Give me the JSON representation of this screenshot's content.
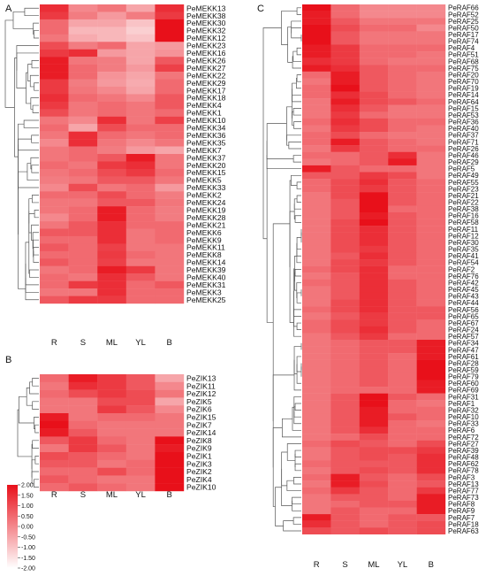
{
  "chart_data": [
    {
      "type": "heatmap",
      "panel": "A",
      "columns": [
        "R",
        "S",
        "ML",
        "YL",
        "B"
      ],
      "rows": [
        "PeMEKK13",
        "PeMEKK38",
        "PeMEKK30",
        "PeMEKK32",
        "PeMEKK12",
        "PeMEKK23",
        "PeMEKK16",
        "PeMEKK26",
        "PeMEKK27",
        "PeMEKK22",
        "PeMEKK29",
        "PeMEKK17",
        "PeMEKK18",
        "PeMEKK4",
        "PeMEKK1",
        "PeMEKK10",
        "PeMEKK34",
        "PeMEKK36",
        "PeMEKK35",
        "PeMEKK7",
        "PeMEKK37",
        "PeMEKK20",
        "PeMEKK15",
        "PeMEKK5",
        "PeMEKK33",
        "PeMEKK2",
        "PeMEKK24",
        "PeMEKK19",
        "PeMEKK28",
        "PeMEKK21",
        "PeMEKK6",
        "PeMEKK9",
        "PeMEKK11",
        "PeMEKK8",
        "PeMEKK14",
        "PeMEKK39",
        "PeMEKK40",
        "PeMEKK31",
        "PeMEKK3",
        "PeMEKK25"
      ],
      "values": [
        [
          1.5,
          0.0,
          0.3,
          -0.5,
          1.5
        ],
        [
          1.3,
          0.2,
          -0.3,
          0.2,
          1.3
        ],
        [
          0.5,
          -0.5,
          -0.5,
          -1.0,
          2.0
        ],
        [
          0.5,
          -0.8,
          -0.8,
          -1.2,
          2.0
        ],
        [
          0.3,
          -0.6,
          -0.8,
          -1.0,
          2.0
        ],
        [
          1.0,
          0.2,
          0.5,
          -0.5,
          -0.3
        ],
        [
          1.3,
          1.5,
          -0.3,
          -0.5,
          -0.2
        ],
        [
          1.8,
          0.3,
          0.2,
          -0.5,
          0.8
        ],
        [
          1.8,
          0.5,
          0.2,
          -0.3,
          1.2
        ],
        [
          1.8,
          0.5,
          -0.2,
          -0.5,
          0.3
        ],
        [
          1.3,
          0.2,
          -0.3,
          -0.6,
          0.5
        ],
        [
          1.3,
          0.3,
          0.0,
          -0.5,
          0.5
        ],
        [
          1.5,
          0.5,
          0.3,
          0.0,
          0.8
        ],
        [
          1.3,
          0.3,
          0.5,
          0.3,
          0.8
        ],
        [
          1.0,
          0.3,
          0.5,
          0.3,
          0.5
        ],
        [
          0.3,
          0.0,
          1.5,
          0.3,
          1.2
        ],
        [
          0.5,
          -0.5,
          1.0,
          0.5,
          0.5
        ],
        [
          0.3,
          1.5,
          0.5,
          0.3,
          0.5
        ],
        [
          0.0,
          1.5,
          0.3,
          0.0,
          0.3
        ],
        [
          0.3,
          0.5,
          0.2,
          -0.3,
          -0.5
        ],
        [
          0.3,
          0.5,
          0.8,
          1.8,
          0.3
        ],
        [
          0.5,
          0.3,
          1.3,
          1.5,
          0.3
        ],
        [
          0.3,
          0.5,
          1.0,
          1.3,
          0.5
        ],
        [
          0.2,
          0.3,
          0.8,
          0.8,
          0.3
        ],
        [
          0.0,
          1.0,
          0.3,
          0.5,
          -0.3
        ],
        [
          0.5,
          0.5,
          1.0,
          0.5,
          0.2
        ],
        [
          0.3,
          0.3,
          0.8,
          0.8,
          0.3
        ],
        [
          0.3,
          0.5,
          1.8,
          0.5,
          0.2
        ],
        [
          0.0,
          0.5,
          1.8,
          0.5,
          0.2
        ],
        [
          0.3,
          0.8,
          1.5,
          0.5,
          0.5
        ],
        [
          0.8,
          0.8,
          1.5,
          0.3,
          0.5
        ],
        [
          0.5,
          0.5,
          1.5,
          0.3,
          0.5
        ],
        [
          0.8,
          0.5,
          1.2,
          0.3,
          0.3
        ],
        [
          0.5,
          0.5,
          1.3,
          0.5,
          0.3
        ],
        [
          0.8,
          0.5,
          1.2,
          0.3,
          0.3
        ],
        [
          0.3,
          0.5,
          1.8,
          1.3,
          0.3
        ],
        [
          0.5,
          0.3,
          1.5,
          0.8,
          0.3
        ],
        [
          0.5,
          1.3,
          1.5,
          0.5,
          0.8
        ],
        [
          0.3,
          0.3,
          1.5,
          0.5,
          0.5
        ],
        [
          0.8,
          1.3,
          1.3,
          0.5,
          0.5
        ]
      ]
    },
    {
      "type": "heatmap",
      "panel": "B",
      "columns": [
        "R",
        "S",
        "ML",
        "YL",
        "B"
      ],
      "rows": [
        "PeZIK13",
        "PeZIK11",
        "PeZIK12",
        "PeZIK5",
        "PeZIK6",
        "PeZIK15",
        "PeZIK7",
        "PeZIK14",
        "PeZIK8",
        "PeZIK9",
        "PeZIK1",
        "PeZIK3",
        "PeZIK2",
        "PeZIK4",
        "PeZIK10"
      ],
      "values": [
        [
          0.5,
          1.8,
          1.3,
          0.8,
          -0.5
        ],
        [
          0.3,
          1.5,
          1.3,
          0.8,
          0.0
        ],
        [
          0.5,
          1.0,
          1.3,
          1.0,
          0.3
        ],
        [
          0.3,
          0.3,
          1.0,
          1.0,
          -0.5
        ],
        [
          0.3,
          0.3,
          1.3,
          0.8,
          0.0
        ],
        [
          1.8,
          0.3,
          0.5,
          0.5,
          0.3
        ],
        [
          2.0,
          0.5,
          0.3,
          0.3,
          0.3
        ],
        [
          1.8,
          0.8,
          0.3,
          0.3,
          0.3
        ],
        [
          0.8,
          1.3,
          0.5,
          0.3,
          2.0
        ],
        [
          0.3,
          1.3,
          0.8,
          0.3,
          1.8
        ],
        [
          1.0,
          0.8,
          0.5,
          0.3,
          2.0
        ],
        [
          0.8,
          0.8,
          0.3,
          0.5,
          2.0
        ],
        [
          0.5,
          0.5,
          1.0,
          0.5,
          2.0
        ],
        [
          0.8,
          0.5,
          0.3,
          0.3,
          2.0
        ],
        [
          0.5,
          0.8,
          0.5,
          0.3,
          2.0
        ]
      ]
    },
    {
      "type": "heatmap",
      "panel": "C",
      "columns": [
        "R",
        "S",
        "ML",
        "YL",
        "B"
      ],
      "rows": [
        "PeRAF66",
        "PeRAF52",
        "PeRAF25",
        "PeRAF50",
        "PeRAF17",
        "PeRAF74",
        "PeRAF4",
        "PeRAF51",
        "PeRAF68",
        "PeRAF75",
        "PeRAF20",
        "PeRAF70",
        "PeRAF19",
        "PeRAF14",
        "PeRAF64",
        "PeRAF15",
        "PeRAF53",
        "PeRAF36",
        "PeRAF40",
        "PeRAF37",
        "PeRAF71",
        "PeRAF26",
        "PeRAF46",
        "PeRAF29",
        "PeRAF5",
        "PeRAF49",
        "PeRAF55",
        "PeRAF23",
        "PeRAF21",
        "PeRAF22",
        "PeRAF38",
        "PeRAF16",
        "PeRAF58",
        "PeRAF11",
        "PeRAF12",
        "PeRAF30",
        "PeRAF35",
        "PeRAF41",
        "PeRAF54",
        "PeRAF2",
        "PeRAF76",
        "PeRAF42",
        "PeRAF45",
        "PeRAF43",
        "PeRAF44",
        "PeRAF56",
        "PeRAF65",
        "PeRAF67",
        "PeRAF24",
        "PeRAF57",
        "PeRAF34",
        "PeRAF47",
        "PeRAF61",
        "PeRAF28",
        "PeRAF59",
        "PeRAF79",
        "PeRAF60",
        "PeRAF69",
        "PeRAF31",
        "PeRAF1",
        "PeRAF32",
        "PeRAF10",
        "PeRAF33",
        "PeRAF6",
        "PeRAF72",
        "PeRAF27",
        "PeRAF39",
        "PeRAF48",
        "PeRAF62",
        "PeRAF78",
        "PeRAF3",
        "PeRAF13",
        "PeRAF77",
        "PeRAF73",
        "PeRAF8",
        "PeRAF9",
        "PeRAF7",
        "PeRAF18",
        "PeRAF63"
      ],
      "values": [
        [
          2.0,
          0.5,
          0.0,
          0.0,
          0.0
        ],
        [
          1.8,
          0.5,
          0.0,
          0.0,
          0.0
        ],
        [
          1.8,
          0.8,
          0.3,
          0.3,
          0.3
        ],
        [
          2.0,
          1.0,
          0.5,
          0.5,
          0.0
        ],
        [
          2.0,
          0.8,
          0.3,
          0.3,
          0.3
        ],
        [
          2.0,
          0.8,
          0.3,
          0.3,
          0.3
        ],
        [
          1.8,
          1.3,
          0.5,
          0.5,
          0.5
        ],
        [
          1.8,
          1.3,
          0.5,
          0.5,
          0.3
        ],
        [
          1.5,
          1.3,
          0.5,
          0.3,
          0.3
        ],
        [
          1.8,
          1.5,
          0.8,
          0.5,
          0.5
        ],
        [
          0.5,
          1.8,
          0.8,
          0.5,
          0.3
        ],
        [
          0.3,
          1.8,
          0.8,
          0.5,
          0.3
        ],
        [
          0.5,
          2.0,
          0.8,
          0.5,
          0.3
        ],
        [
          0.5,
          1.5,
          1.0,
          0.5,
          0.3
        ],
        [
          0.3,
          1.8,
          1.0,
          0.8,
          0.5
        ],
        [
          0.3,
          1.5,
          0.8,
          0.3,
          0.3
        ],
        [
          0.3,
          1.3,
          0.5,
          0.3,
          0.3
        ],
        [
          0.5,
          1.5,
          1.0,
          0.5,
          0.5
        ],
        [
          0.3,
          1.3,
          1.0,
          0.5,
          0.3
        ],
        [
          0.5,
          1.0,
          0.5,
          0.3,
          0.3
        ],
        [
          0.5,
          1.8,
          0.8,
          0.5,
          0.3
        ],
        [
          0.3,
          1.3,
          0.8,
          0.5,
          0.5
        ],
        [
          0.5,
          0.5,
          0.8,
          1.5,
          0.3
        ],
        [
          0.3,
          0.5,
          0.8,
          1.8,
          0.3
        ],
        [
          1.8,
          0.8,
          0.5,
          0.5,
          0.3
        ],
        [
          0.8,
          0.8,
          1.3,
          1.0,
          0.3
        ],
        [
          0.5,
          1.0,
          1.5,
          0.8,
          0.5
        ],
        [
          0.5,
          1.0,
          1.3,
          0.8,
          0.5
        ],
        [
          0.3,
          1.0,
          2.0,
          0.8,
          0.5
        ],
        [
          0.3,
          0.8,
          2.0,
          0.8,
          0.5
        ],
        [
          0.3,
          0.8,
          2.0,
          0.5,
          0.5
        ],
        [
          0.3,
          0.8,
          1.8,
          0.8,
          0.5
        ],
        [
          0.3,
          1.0,
          2.0,
          0.8,
          0.5
        ],
        [
          0.3,
          1.0,
          1.5,
          0.8,
          0.5
        ],
        [
          0.3,
          1.0,
          1.5,
          0.8,
          0.5
        ],
        [
          0.3,
          1.0,
          1.5,
          0.8,
          0.5
        ],
        [
          0.3,
          1.0,
          1.3,
          0.8,
          0.5
        ],
        [
          0.3,
          0.8,
          1.5,
          0.8,
          0.5
        ],
        [
          0.3,
          1.0,
          1.3,
          0.8,
          0.5
        ],
        [
          0.5,
          1.0,
          1.5,
          0.5,
          0.5
        ],
        [
          0.3,
          0.8,
          1.5,
          0.5,
          0.5
        ],
        [
          0.5,
          0.8,
          1.5,
          0.8,
          0.5
        ],
        [
          0.3,
          0.8,
          1.5,
          0.8,
          0.5
        ],
        [
          0.3,
          0.8,
          1.5,
          0.8,
          0.5
        ],
        [
          0.3,
          1.0,
          1.5,
          0.8,
          0.5
        ],
        [
          0.5,
          1.0,
          1.5,
          0.8,
          0.8
        ],
        [
          0.3,
          0.8,
          1.3,
          0.8,
          0.8
        ],
        [
          0.5,
          1.0,
          1.3,
          0.8,
          0.5
        ],
        [
          0.5,
          1.0,
          1.5,
          0.8,
          0.5
        ],
        [
          0.3,
          0.8,
          1.3,
          0.5,
          0.5
        ],
        [
          0.3,
          0.5,
          0.8,
          0.8,
          1.8
        ],
        [
          0.3,
          0.5,
          0.8,
          0.8,
          1.8
        ],
        [
          0.3,
          0.5,
          0.8,
          0.5,
          1.8
        ],
        [
          0.3,
          0.5,
          0.8,
          0.5,
          2.0
        ],
        [
          0.3,
          0.5,
          0.8,
          0.5,
          2.0
        ],
        [
          0.3,
          0.5,
          0.8,
          0.5,
          2.0
        ],
        [
          0.3,
          0.5,
          0.8,
          0.5,
          1.8
        ],
        [
          0.3,
          0.5,
          0.5,
          0.5,
          1.8
        ],
        [
          0.3,
          0.8,
          2.0,
          0.8,
          0.5
        ],
        [
          0.3,
          0.8,
          2.0,
          0.5,
          0.3
        ],
        [
          0.3,
          0.8,
          1.8,
          0.5,
          0.5
        ],
        [
          0.3,
          0.8,
          1.8,
          0.8,
          0.5
        ],
        [
          0.3,
          0.8,
          1.8,
          0.5,
          0.3
        ],
        [
          0.3,
          0.8,
          1.5,
          0.5,
          0.5
        ],
        [
          0.3,
          0.5,
          1.0,
          0.5,
          0.5
        ],
        [
          0.5,
          1.0,
          0.8,
          0.5,
          1.0
        ],
        [
          0.3,
          0.8,
          1.0,
          1.0,
          1.3
        ],
        [
          0.3,
          0.8,
          1.0,
          0.8,
          1.5
        ],
        [
          0.5,
          0.8,
          0.8,
          0.8,
          1.5
        ],
        [
          0.3,
          0.8,
          1.0,
          0.8,
          1.5
        ],
        [
          0.5,
          1.8,
          0.8,
          0.5,
          1.0
        ],
        [
          0.3,
          1.8,
          1.0,
          0.5,
          0.8
        ],
        [
          0.5,
          1.3,
          0.8,
          0.5,
          1.3
        ],
        [
          0.3,
          0.8,
          0.8,
          0.5,
          1.8
        ],
        [
          0.3,
          0.5,
          0.8,
          0.8,
          1.8
        ],
        [
          0.3,
          0.8,
          0.5,
          0.5,
          1.8
        ],
        [
          1.8,
          0.8,
          0.5,
          0.8,
          0.8
        ],
        [
          1.5,
          0.8,
          0.5,
          0.8,
          1.0
        ],
        [
          1.0,
          0.8,
          1.0,
          0.8,
          1.0
        ]
      ]
    }
  ],
  "panels": {
    "A": {
      "letter": "A"
    },
    "B": {
      "letter": "B"
    },
    "C": {
      "letter": "C"
    }
  },
  "legend": {
    "min": -2.0,
    "max": 2.0,
    "ticks": [
      "2.00",
      "1.50",
      "1.00",
      "0.50",
      "0.00",
      "-0.50",
      "-1.00",
      "-1.50",
      "-2.00"
    ]
  },
  "colors": {
    "high": "#e8101a",
    "low": "#ffffff",
    "tree": "#555555"
  }
}
